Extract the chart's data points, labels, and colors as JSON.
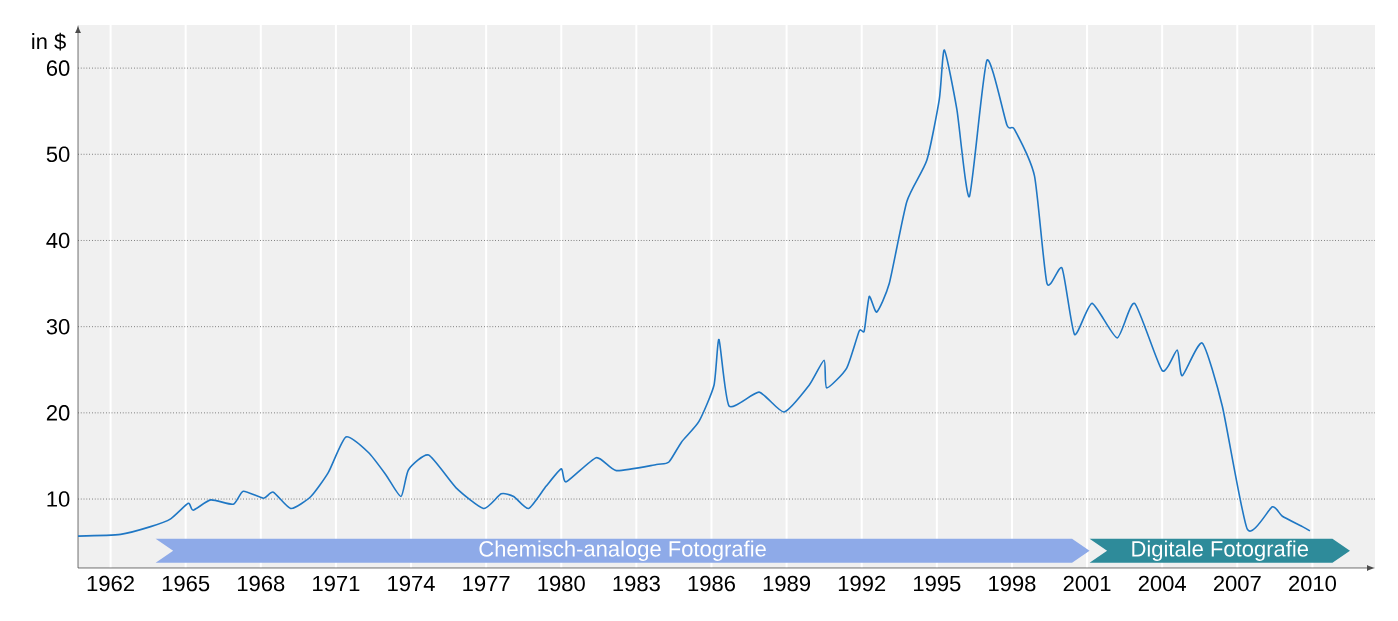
{
  "chart_data": {
    "type": "line",
    "ylabel": "in $",
    "xlim": [
      1960.7,
      2012.5
    ],
    "ylim": [
      2,
      65
    ],
    "xticks": [
      1962,
      1965,
      1968,
      1971,
      1974,
      1977,
      1980,
      1983,
      1986,
      1989,
      1992,
      1995,
      1998,
      2001,
      2004,
      2007,
      2010
    ],
    "yticks": [
      10,
      20,
      30,
      40,
      50,
      60
    ],
    "grid": true,
    "marker": "none",
    "line_style": "solid",
    "series": [
      {
        "color": "#1f77c4",
        "x": [
          1960.7,
          1962.4,
          1963.6,
          1964.4,
          1965.1,
          1965.3,
          1966.0,
          1966.9,
          1967.3,
          1968.1,
          1968.5,
          1969.2,
          1970.0,
          1970.7,
          1971.4,
          1972.3,
          1973.0,
          1973.6,
          1973.9,
          1974.7,
          1975.8,
          1976.9,
          1977.6,
          1978.1,
          1978.7,
          1979.4,
          1980.0,
          1980.2,
          1981.4,
          1982.2,
          1983.8,
          1984.3,
          1984.8,
          1985.5,
          1986.1,
          1986.3,
          1986.7,
          1987.9,
          1988.9,
          1989.9,
          1990.5,
          1990.6,
          1991.4,
          1991.9,
          1992.1,
          1992.3,
          1992.6,
          1993.1,
          1993.8,
          1994.6,
          1995.1,
          1995.3,
          1995.8,
          1996.3,
          1997.0,
          1997.8,
          1998.1,
          1998.9,
          1999.4,
          2000.0,
          2000.5,
          2001.2,
          2002.2,
          2002.9,
          2004.0,
          2004.6,
          2004.8,
          2005.6,
          2006.4,
          2007.4,
          2008.4,
          2008.8,
          2009.6,
          2009.9
        ],
        "values": [
          5.7,
          5.9,
          6.8,
          7.7,
          9.5,
          8.7,
          9.9,
          9.4,
          10.9,
          10.1,
          10.8,
          8.9,
          10.3,
          13.1,
          17.2,
          15.4,
          12.8,
          10.3,
          13.4,
          15.1,
          11.3,
          8.9,
          10.6,
          10.3,
          8.9,
          11.5,
          13.5,
          12.0,
          14.8,
          13.3,
          14.0,
          14.3,
          16.6,
          19.0,
          23.2,
          28.5,
          20.8,
          22.4,
          20.1,
          23.2,
          26.1,
          22.9,
          25.2,
          29.5,
          29.5,
          33.5,
          31.7,
          35.0,
          44.5,
          49.3,
          56.4,
          62.1,
          55.2,
          45.1,
          60.9,
          53.4,
          52.9,
          47.5,
          35.0,
          36.8,
          29.1,
          32.7,
          28.7,
          32.7,
          24.9,
          27.3,
          24.3,
          28.1,
          20.8,
          6.5,
          9.1,
          8.0,
          6.8,
          6.3
        ]
      }
    ],
    "bands": [
      {
        "axis": "x",
        "from": 1963.8,
        "to": 2001.1,
        "label": "Chemisch-analoge Fotografie",
        "color": "#8eaae8"
      },
      {
        "axis": "x",
        "from": 2001.1,
        "to": 2011.5,
        "label": "Digitale Fotografie",
        "color": "#2e8b9a"
      }
    ]
  }
}
